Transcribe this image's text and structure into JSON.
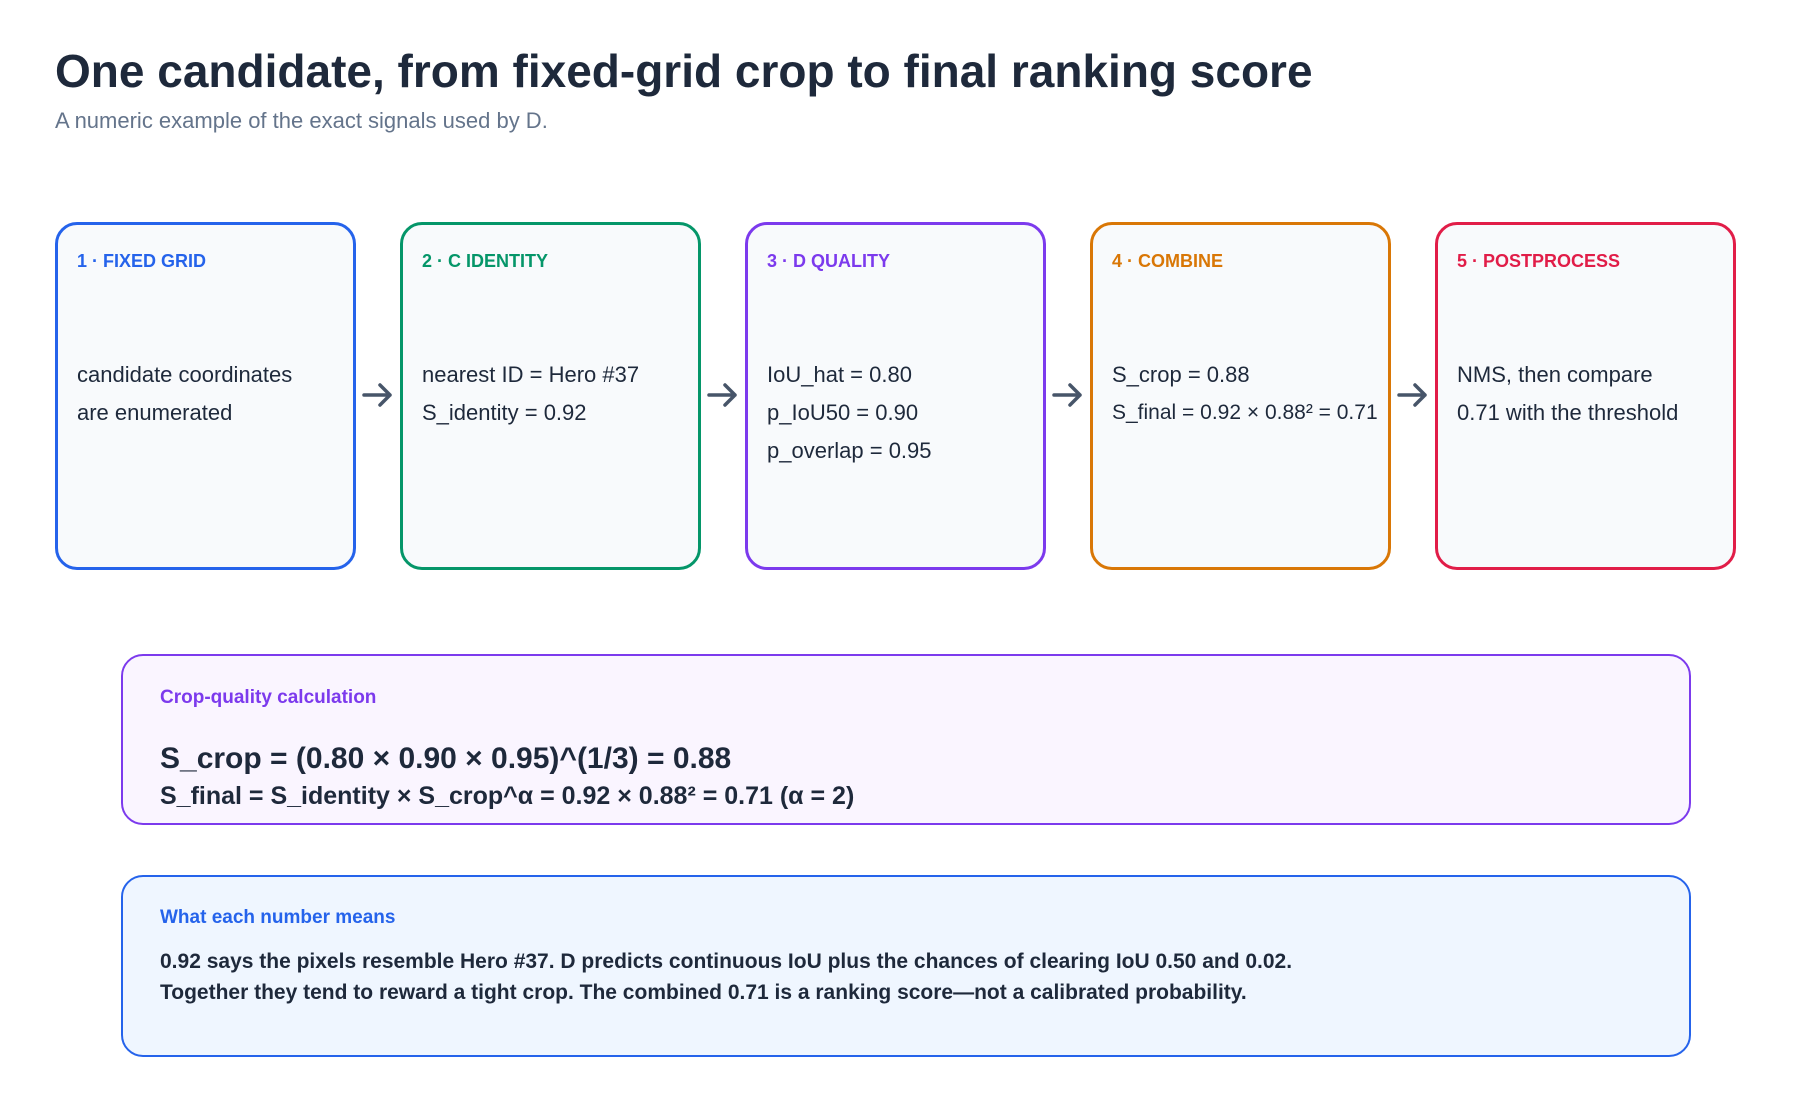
{
  "header": {
    "title": "One candidate, from fixed-grid crop to final ranking score",
    "subtitle": "A numeric example of the exact signals used by D."
  },
  "steps": [
    {
      "label": "1 · FIXED GRID",
      "color": "#2563eb",
      "lines": [
        "candidate coordinates",
        "are enumerated"
      ]
    },
    {
      "label": "2 · C IDENTITY",
      "color": "#059669",
      "lines": [
        "nearest ID = Hero #37",
        "S_identity = 0.92"
      ]
    },
    {
      "label": "3 · D QUALITY",
      "color": "#7c3aed",
      "lines": [
        "IoU_hat = 0.80",
        "p_IoU50 = 0.90",
        "p_overlap = 0.95"
      ]
    },
    {
      "label": "4 · COMBINE",
      "color": "#d97706",
      "lines": [
        "S_crop = 0.88",
        "S_final = 0.92 × 0.88² = 0.71"
      ]
    },
    {
      "label": "5 · POSTPROCESS",
      "color": "#e11d48",
      "lines": [
        "NMS, then compare",
        "0.71 with the threshold"
      ]
    }
  ],
  "calculation": {
    "label": "Crop-quality calculation",
    "formula_crop": "S_crop = (0.80 × 0.90 × 0.95)^(1/3) = 0.88",
    "formula_final": "S_final = S_identity × S_crop^α = 0.92 × 0.88² = 0.71  (α = 2)"
  },
  "meaning": {
    "label": "What each number means",
    "line_1": "0.92 says the pixels resemble Hero #37. D predicts continuous IoU plus the chances of clearing IoU 0.50 and 0.02.",
    "line_2": "Together they tend to reward a tight crop. The combined 0.71 is a ranking score—not a calibrated probability."
  },
  "colors": {
    "arrow": "#475569",
    "step_fill": "#f8fafc",
    "calc_fill": "#faf5ff",
    "means_fill": "#eff6ff"
  }
}
